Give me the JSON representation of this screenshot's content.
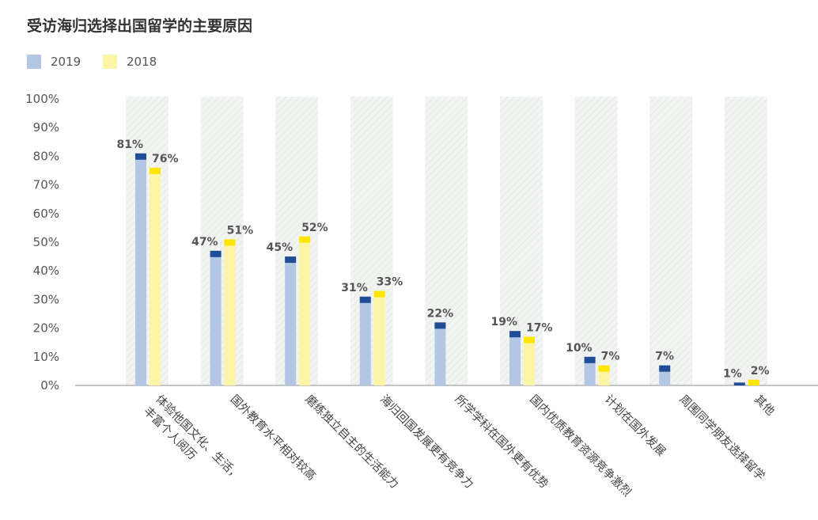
{
  "chart_data": {
    "type": "bar",
    "title": "受访海归选择出国留学的主要原因",
    "categories": [
      "体验他国文化、生活，丰富个人阅历",
      "国外教育水平相对较高",
      "磨练独立自主的生活能力",
      "海归回国发展更有竞争力",
      "所学学科在国外更有优势",
      "国内优质教育资源竞争激烈",
      "计划在国外发展",
      "周围同学朋友选择留学",
      "其他"
    ],
    "category_lines": [
      [
        "体验他国文化、生活，",
        "丰富个人阅历"
      ],
      [
        "国外教育水平相对较高"
      ],
      [
        "磨练独立自主的生活能力"
      ],
      [
        "海归回国发展更有竞争力"
      ],
      [
        "所学学科在国外更有优势"
      ],
      [
        "国内优质教育资源竞争激烈"
      ],
      [
        "计划在国外发展"
      ],
      [
        "周围同学朋友选择留学"
      ],
      [
        "其他"
      ]
    ],
    "series": [
      {
        "name": "2019",
        "values": [
          81,
          47,
          45,
          31,
          22,
          19,
          10,
          7,
          1
        ],
        "color": "#b3c6e3",
        "cap_color": "#1f4e96"
      },
      {
        "name": "2018",
        "values": [
          76,
          51,
          52,
          33,
          null,
          17,
          7,
          null,
          2
        ],
        "color": "#fdf5a6",
        "cap_color": "#ffe600"
      }
    ],
    "ytick_labels": [
      "0%",
      "10%",
      "20%",
      "30%",
      "40%",
      "50%",
      "60%",
      "70%",
      "80%",
      "90%",
      "100%"
    ],
    "ylim": [
      0,
      100
    ],
    "legend_position": "top-left",
    "grid": false,
    "background_band_color": "#eef1ee"
  }
}
